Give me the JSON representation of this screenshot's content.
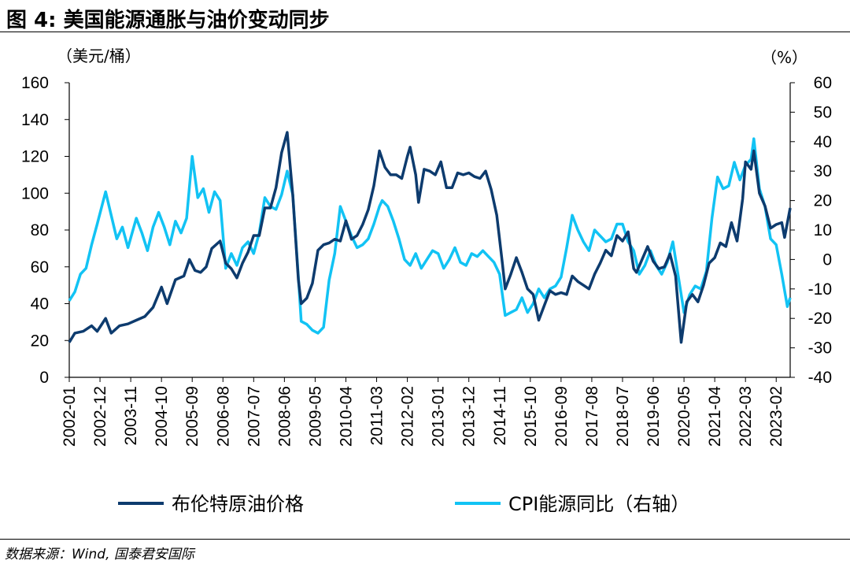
{
  "title": "图 4:  美国能源通胀与油价变动同步",
  "source": "数据来源：Wind, 国泰君安国际",
  "colors": {
    "oil": "#0d3b6e",
    "cpi": "#12c3f4"
  },
  "chart_data": {
    "type": "line",
    "left_unit": "（美元/桶）",
    "right_unit": "（%）",
    "ylim_left": [
      0,
      160
    ],
    "ylim_right": [
      -40,
      60
    ],
    "yticks_left": [
      0,
      20,
      40,
      60,
      80,
      100,
      120,
      140,
      160
    ],
    "yticks_right": [
      -40,
      -30,
      -20,
      -10,
      0,
      10,
      20,
      30,
      40,
      50,
      60
    ],
    "x_range": [
      "2002-01",
      "2023-07"
    ],
    "x_tick_labels": [
      "2002-01",
      "2002-12",
      "2003-11",
      "2004-10",
      "2005-09",
      "2006-08",
      "2007-07",
      "2008-06",
      "2009-05",
      "2010-04",
      "2011-03",
      "2012-02",
      "2013-01",
      "2013-12",
      "2014-11",
      "2015-10",
      "2016-09",
      "2017-08",
      "2018-07",
      "2019-06",
      "2020-05",
      "2021-04",
      "2022-03",
      "2023-02"
    ],
    "legend_placement": "bottom",
    "series": [
      {
        "name": "布伦特原油价格",
        "axis": "left",
        "color": "#0d3b6e",
        "points": [
          [
            "2002-01",
            19
          ],
          [
            "2002-03",
            24
          ],
          [
            "2002-06",
            25
          ],
          [
            "2002-09",
            28
          ],
          [
            "2002-11",
            25
          ],
          [
            "2003-02",
            32
          ],
          [
            "2003-04",
            24
          ],
          [
            "2003-07",
            28
          ],
          [
            "2003-10",
            29
          ],
          [
            "2004-01",
            31
          ],
          [
            "2004-04",
            33
          ],
          [
            "2004-07",
            38
          ],
          [
            "2004-10",
            49
          ],
          [
            "2004-12",
            40
          ],
          [
            "2005-03",
            53
          ],
          [
            "2005-06",
            55
          ],
          [
            "2005-08",
            64
          ],
          [
            "2005-10",
            58
          ],
          [
            "2005-12",
            57
          ],
          [
            "2006-02",
            60
          ],
          [
            "2006-04",
            70
          ],
          [
            "2006-07",
            74
          ],
          [
            "2006-09",
            62
          ],
          [
            "2006-11",
            59
          ],
          [
            "2007-01",
            54
          ],
          [
            "2007-03",
            62
          ],
          [
            "2007-05",
            68
          ],
          [
            "2007-07",
            77
          ],
          [
            "2007-09",
            77
          ],
          [
            "2007-11",
            92
          ],
          [
            "2008-01",
            92
          ],
          [
            "2008-03",
            103
          ],
          [
            "2008-05",
            122
          ],
          [
            "2008-07",
            133
          ],
          [
            "2008-09",
            99
          ],
          [
            "2008-11",
            53
          ],
          [
            "2008-12",
            40
          ],
          [
            "2009-02",
            43
          ],
          [
            "2009-04",
            51
          ],
          [
            "2009-06",
            69
          ],
          [
            "2009-08",
            72
          ],
          [
            "2009-10",
            73
          ],
          [
            "2009-12",
            75
          ],
          [
            "2010-02",
            74
          ],
          [
            "2010-04",
            85
          ],
          [
            "2010-06",
            75
          ],
          [
            "2010-08",
            77
          ],
          [
            "2010-10",
            83
          ],
          [
            "2010-12",
            91
          ],
          [
            "2011-02",
            104
          ],
          [
            "2011-04",
            123
          ],
          [
            "2011-06",
            114
          ],
          [
            "2011-08",
            110
          ],
          [
            "2011-10",
            110
          ],
          [
            "2011-12",
            108
          ],
          [
            "2012-02",
            120
          ],
          [
            "2012-03",
            125
          ],
          [
            "2012-05",
            110
          ],
          [
            "2012-06",
            95
          ],
          [
            "2012-08",
            113
          ],
          [
            "2012-10",
            112
          ],
          [
            "2012-12",
            110
          ],
          [
            "2013-02",
            117
          ],
          [
            "2013-04",
            103
          ],
          [
            "2013-06",
            103
          ],
          [
            "2013-08",
            111
          ],
          [
            "2013-10",
            110
          ],
          [
            "2013-12",
            111
          ],
          [
            "2014-02",
            109
          ],
          [
            "2014-04",
            108
          ],
          [
            "2014-06",
            112
          ],
          [
            "2014-08",
            102
          ],
          [
            "2014-10",
            88
          ],
          [
            "2014-12",
            62
          ],
          [
            "2015-01",
            48
          ],
          [
            "2015-03",
            56
          ],
          [
            "2015-05",
            65
          ],
          [
            "2015-07",
            57
          ],
          [
            "2015-09",
            48
          ],
          [
            "2015-11",
            45
          ],
          [
            "2016-01",
            31
          ],
          [
            "2016-03",
            39
          ],
          [
            "2016-05",
            47
          ],
          [
            "2016-07",
            45
          ],
          [
            "2016-09",
            46
          ],
          [
            "2016-11",
            45
          ],
          [
            "2017-01",
            55
          ],
          [
            "2017-03",
            52
          ],
          [
            "2017-05",
            50
          ],
          [
            "2017-07",
            48
          ],
          [
            "2017-09",
            56
          ],
          [
            "2017-11",
            62
          ],
          [
            "2018-01",
            69
          ],
          [
            "2018-03",
            66
          ],
          [
            "2018-05",
            77
          ],
          [
            "2018-07",
            74
          ],
          [
            "2018-09",
            79
          ],
          [
            "2018-11",
            59
          ],
          [
            "2018-12",
            57
          ],
          [
            "2019-02",
            64
          ],
          [
            "2019-04",
            71
          ],
          [
            "2019-06",
            63
          ],
          [
            "2019-08",
            59
          ],
          [
            "2019-10",
            60
          ],
          [
            "2019-12",
            67
          ],
          [
            "2020-02",
            55
          ],
          [
            "2020-04",
            19
          ],
          [
            "2020-06",
            41
          ],
          [
            "2020-08",
            45
          ],
          [
            "2020-10",
            41
          ],
          [
            "2020-12",
            50
          ],
          [
            "2021-02",
            62
          ],
          [
            "2021-04",
            65
          ],
          [
            "2021-06",
            73
          ],
          [
            "2021-08",
            71
          ],
          [
            "2021-10",
            84
          ],
          [
            "2021-12",
            74
          ],
          [
            "2022-02",
            97
          ],
          [
            "2022-03",
            117
          ],
          [
            "2022-05",
            113
          ],
          [
            "2022-06",
            123
          ],
          [
            "2022-08",
            100
          ],
          [
            "2022-10",
            93
          ],
          [
            "2022-12",
            81
          ],
          [
            "2023-02",
            83
          ],
          [
            "2023-04",
            84
          ],
          [
            "2023-05",
            76
          ],
          [
            "2023-07",
            92
          ]
        ]
      },
      {
        "name": "CPI能源同比（右轴）",
        "axis": "right",
        "color": "#12c3f4",
        "points": [
          [
            "2002-01",
            -14
          ],
          [
            "2002-03",
            -11
          ],
          [
            "2002-05",
            -5
          ],
          [
            "2002-07",
            -3
          ],
          [
            "2002-09",
            5
          ],
          [
            "2002-11",
            12
          ],
          [
            "2003-02",
            23
          ],
          [
            "2003-04",
            15
          ],
          [
            "2003-06",
            7
          ],
          [
            "2003-08",
            11
          ],
          [
            "2003-10",
            4
          ],
          [
            "2004-01",
            14
          ],
          [
            "2004-03",
            9
          ],
          [
            "2004-05",
            3
          ],
          [
            "2004-07",
            11
          ],
          [
            "2004-09",
            16
          ],
          [
            "2004-11",
            11
          ],
          [
            "2005-01",
            5
          ],
          [
            "2005-03",
            13
          ],
          [
            "2005-05",
            9
          ],
          [
            "2005-07",
            14
          ],
          [
            "2005-09",
            35
          ],
          [
            "2005-11",
            21
          ],
          [
            "2006-01",
            24
          ],
          [
            "2006-03",
            16
          ],
          [
            "2006-05",
            23
          ],
          [
            "2006-07",
            20
          ],
          [
            "2006-09",
            -3
          ],
          [
            "2006-11",
            2
          ],
          [
            "2007-01",
            -2
          ],
          [
            "2007-03",
            4
          ],
          [
            "2007-05",
            6
          ],
          [
            "2007-07",
            2
          ],
          [
            "2007-09",
            9
          ],
          [
            "2007-11",
            21
          ],
          [
            "2008-01",
            18
          ],
          [
            "2008-03",
            17
          ],
          [
            "2008-05",
            22
          ],
          [
            "2008-07",
            30
          ],
          [
            "2008-09",
            22
          ],
          [
            "2008-11",
            -6
          ],
          [
            "2008-12",
            -21
          ],
          [
            "2009-02",
            -22
          ],
          [
            "2009-04",
            -24
          ],
          [
            "2009-06",
            -25
          ],
          [
            "2009-08",
            -23
          ],
          [
            "2009-10",
            -7
          ],
          [
            "2009-12",
            2
          ],
          [
            "2010-02",
            18
          ],
          [
            "2010-04",
            13
          ],
          [
            "2010-06",
            8
          ],
          [
            "2010-08",
            4
          ],
          [
            "2010-10",
            5
          ],
          [
            "2010-12",
            7
          ],
          [
            "2011-02",
            12
          ],
          [
            "2011-04",
            18
          ],
          [
            "2011-05",
            20
          ],
          [
            "2011-07",
            18
          ],
          [
            "2011-09",
            13
          ],
          [
            "2011-11",
            7
          ],
          [
            "2012-01",
            0
          ],
          [
            "2012-03",
            -2
          ],
          [
            "2012-05",
            2
          ],
          [
            "2012-07",
            -3
          ],
          [
            "2012-09",
            0
          ],
          [
            "2012-11",
            3
          ],
          [
            "2013-01",
            2
          ],
          [
            "2013-03",
            -3
          ],
          [
            "2013-05",
            0
          ],
          [
            "2013-07",
            4
          ],
          [
            "2013-09",
            -1
          ],
          [
            "2013-11",
            -2
          ],
          [
            "2014-01",
            2
          ],
          [
            "2014-03",
            1
          ],
          [
            "2014-05",
            3
          ],
          [
            "2014-07",
            1
          ],
          [
            "2014-09",
            -1
          ],
          [
            "2014-11",
            -5
          ],
          [
            "2015-01",
            -19
          ],
          [
            "2015-03",
            -18
          ],
          [
            "2015-05",
            -17
          ],
          [
            "2015-07",
            -13
          ],
          [
            "2015-09",
            -18
          ],
          [
            "2015-11",
            -15
          ],
          [
            "2016-01",
            -10
          ],
          [
            "2016-03",
            -13
          ],
          [
            "2016-05",
            -10
          ],
          [
            "2016-07",
            -9
          ],
          [
            "2016-09",
            -6
          ],
          [
            "2016-11",
            4
          ],
          [
            "2017-01",
            15
          ],
          [
            "2017-03",
            10
          ],
          [
            "2017-05",
            6
          ],
          [
            "2017-07",
            3
          ],
          [
            "2017-09",
            10
          ],
          [
            "2017-11",
            8
          ],
          [
            "2018-01",
            6
          ],
          [
            "2018-03",
            7
          ],
          [
            "2018-05",
            12
          ],
          [
            "2018-07",
            12
          ],
          [
            "2018-09",
            6
          ],
          [
            "2018-11",
            3
          ],
          [
            "2019-01",
            -5
          ],
          [
            "2019-03",
            -2
          ],
          [
            "2019-05",
            3
          ],
          [
            "2019-07",
            -2
          ],
          [
            "2019-09",
            -5
          ],
          [
            "2019-11",
            -1
          ],
          [
            "2020-01",
            6
          ],
          [
            "2020-03",
            -6
          ],
          [
            "2020-05",
            -18
          ],
          [
            "2020-07",
            -12
          ],
          [
            "2020-09",
            -9
          ],
          [
            "2020-11",
            -10
          ],
          [
            "2021-01",
            -4
          ],
          [
            "2021-03",
            14
          ],
          [
            "2021-05",
            28
          ],
          [
            "2021-07",
            24
          ],
          [
            "2021-09",
            25
          ],
          [
            "2021-11",
            33
          ],
          [
            "2022-01",
            27
          ],
          [
            "2022-03",
            32
          ],
          [
            "2022-05",
            34
          ],
          [
            "2022-06",
            41
          ],
          [
            "2022-08",
            24
          ],
          [
            "2022-10",
            18
          ],
          [
            "2022-12",
            7
          ],
          [
            "2023-02",
            5
          ],
          [
            "2023-04",
            -5
          ],
          [
            "2023-06",
            -16
          ],
          [
            "2023-07",
            -13
          ]
        ]
      }
    ]
  }
}
